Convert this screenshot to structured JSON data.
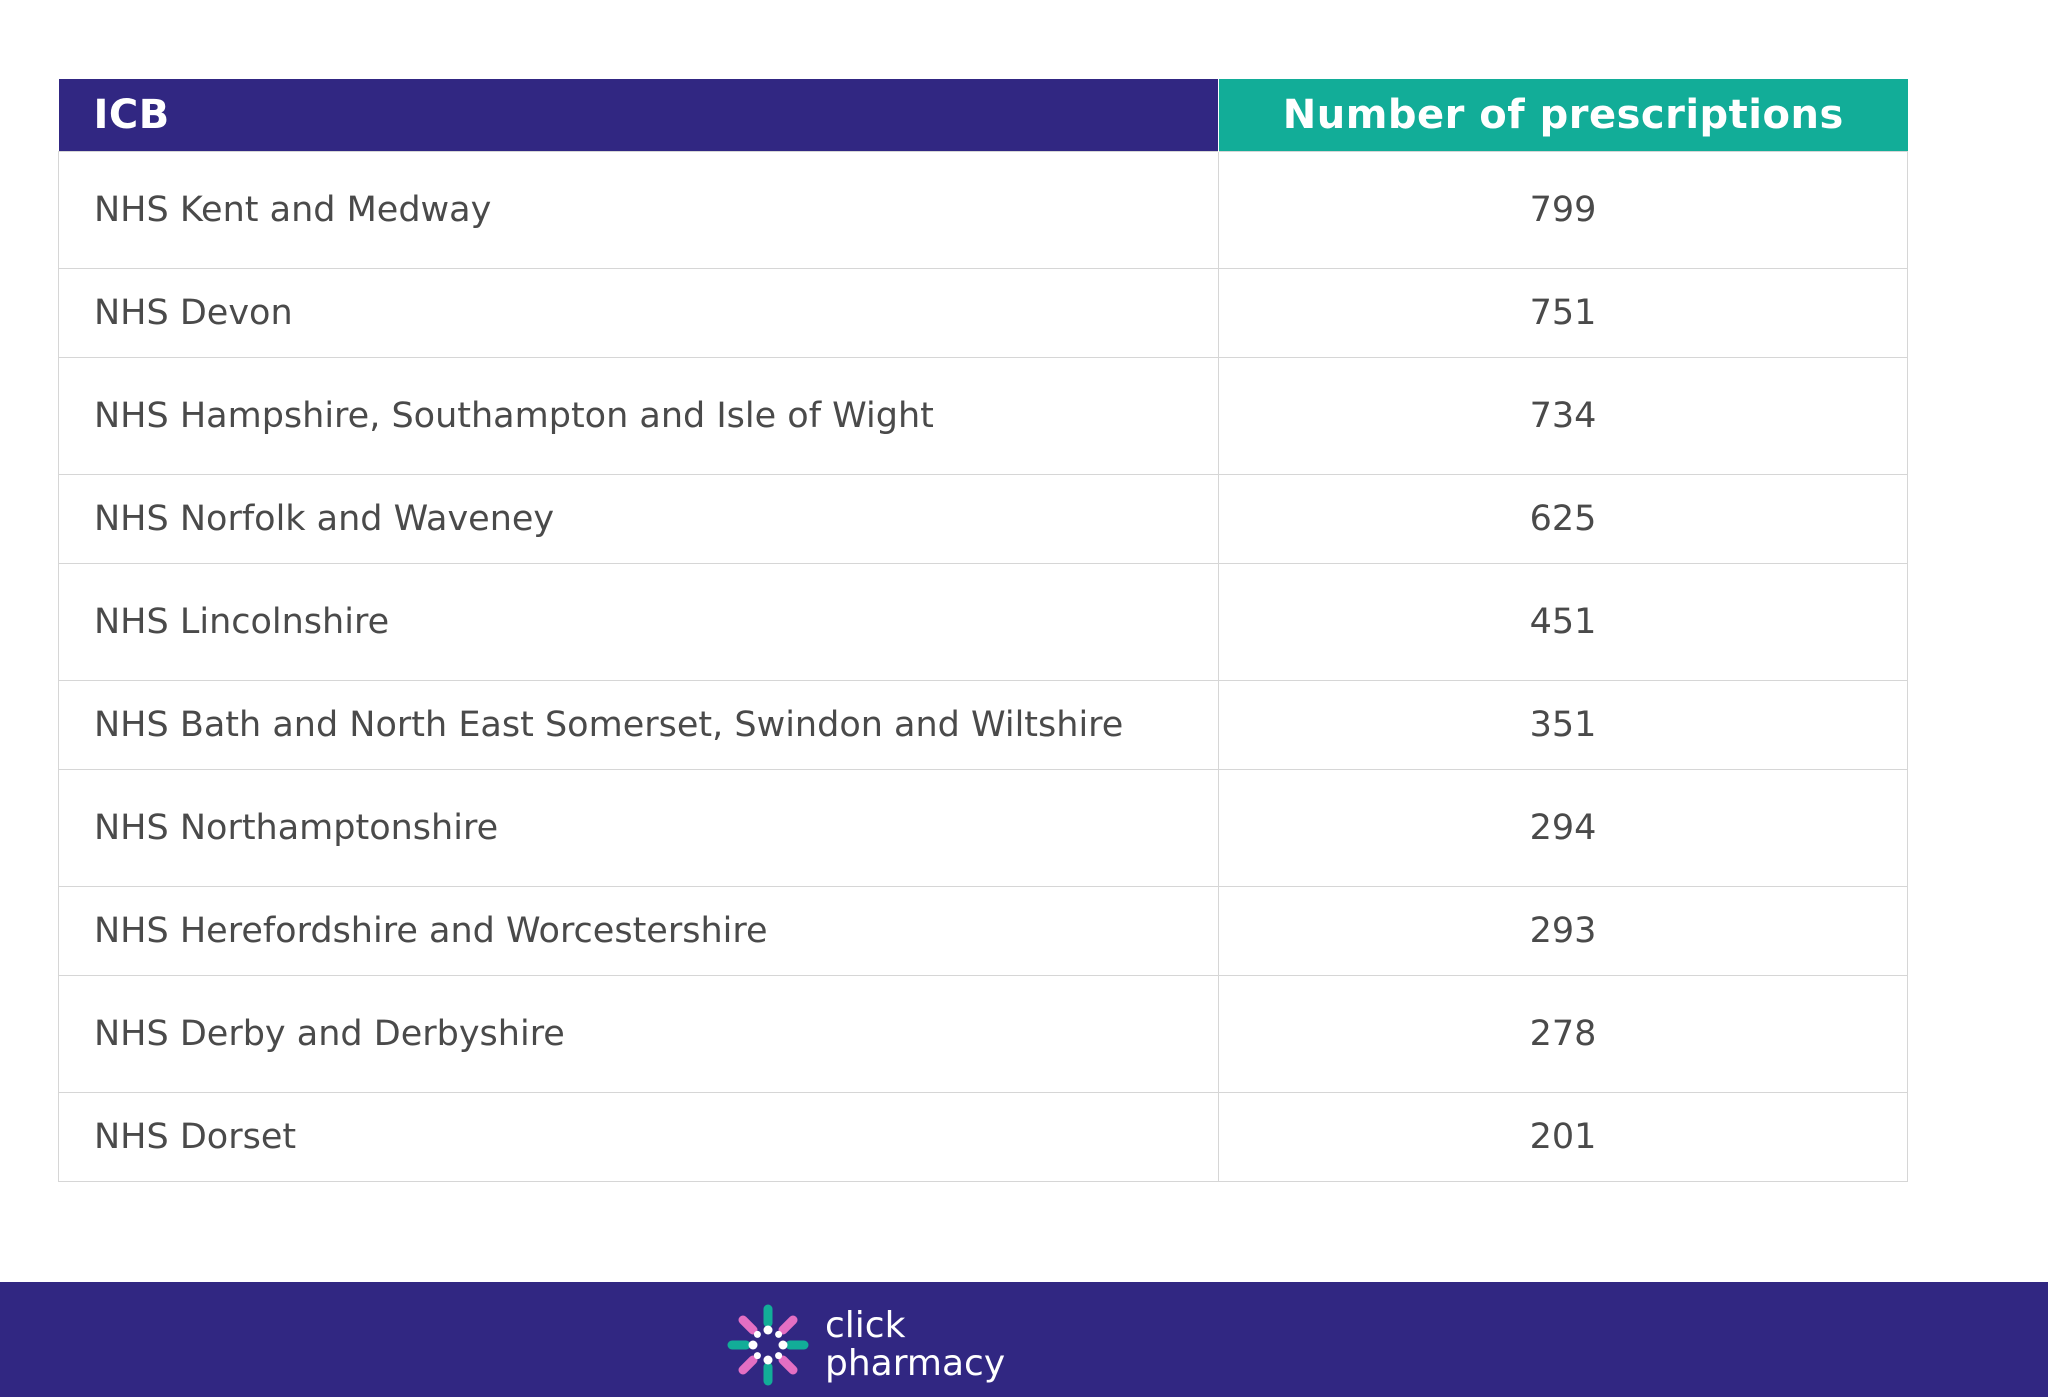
{
  "chart_data": {
    "type": "table",
    "columns": [
      "ICB",
      "Number of prescriptions"
    ],
    "rows": [
      {
        "icb": "NHS Kent and Medway",
        "prescriptions": "799"
      },
      {
        "icb": "NHS Devon",
        "prescriptions": "751"
      },
      {
        "icb": "NHS Hampshire, Southampton and Isle of Wight",
        "prescriptions": "734"
      },
      {
        "icb": "NHS Norfolk and Waveney",
        "prescriptions": "625"
      },
      {
        "icb": "NHS Lincolnshire",
        "prescriptions": "451"
      },
      {
        "icb": "NHS Bath and North East Somerset, Swindon and Wiltshire",
        "prescriptions": "351"
      },
      {
        "icb": "NHS Northamptonshire",
        "prescriptions": "294"
      },
      {
        "icb": "NHS Herefordshire and Worcestershire",
        "prescriptions": "293"
      },
      {
        "icb": "NHS Derby and Derbyshire",
        "prescriptions": "278"
      },
      {
        "icb": "NHS Dorset",
        "prescriptions": "201"
      }
    ]
  },
  "footer": {
    "brand_line1": "click",
    "brand_line2": "pharmacy",
    "logo_icon": "click-pharmacy-logo-icon"
  },
  "colors": {
    "header_icb": "#312782",
    "header_count": "#12ad98",
    "footer_bg": "#312782",
    "logo_teal": "#12ad98",
    "logo_pink": "#e46fc3",
    "logo_white": "#ffffff"
  }
}
